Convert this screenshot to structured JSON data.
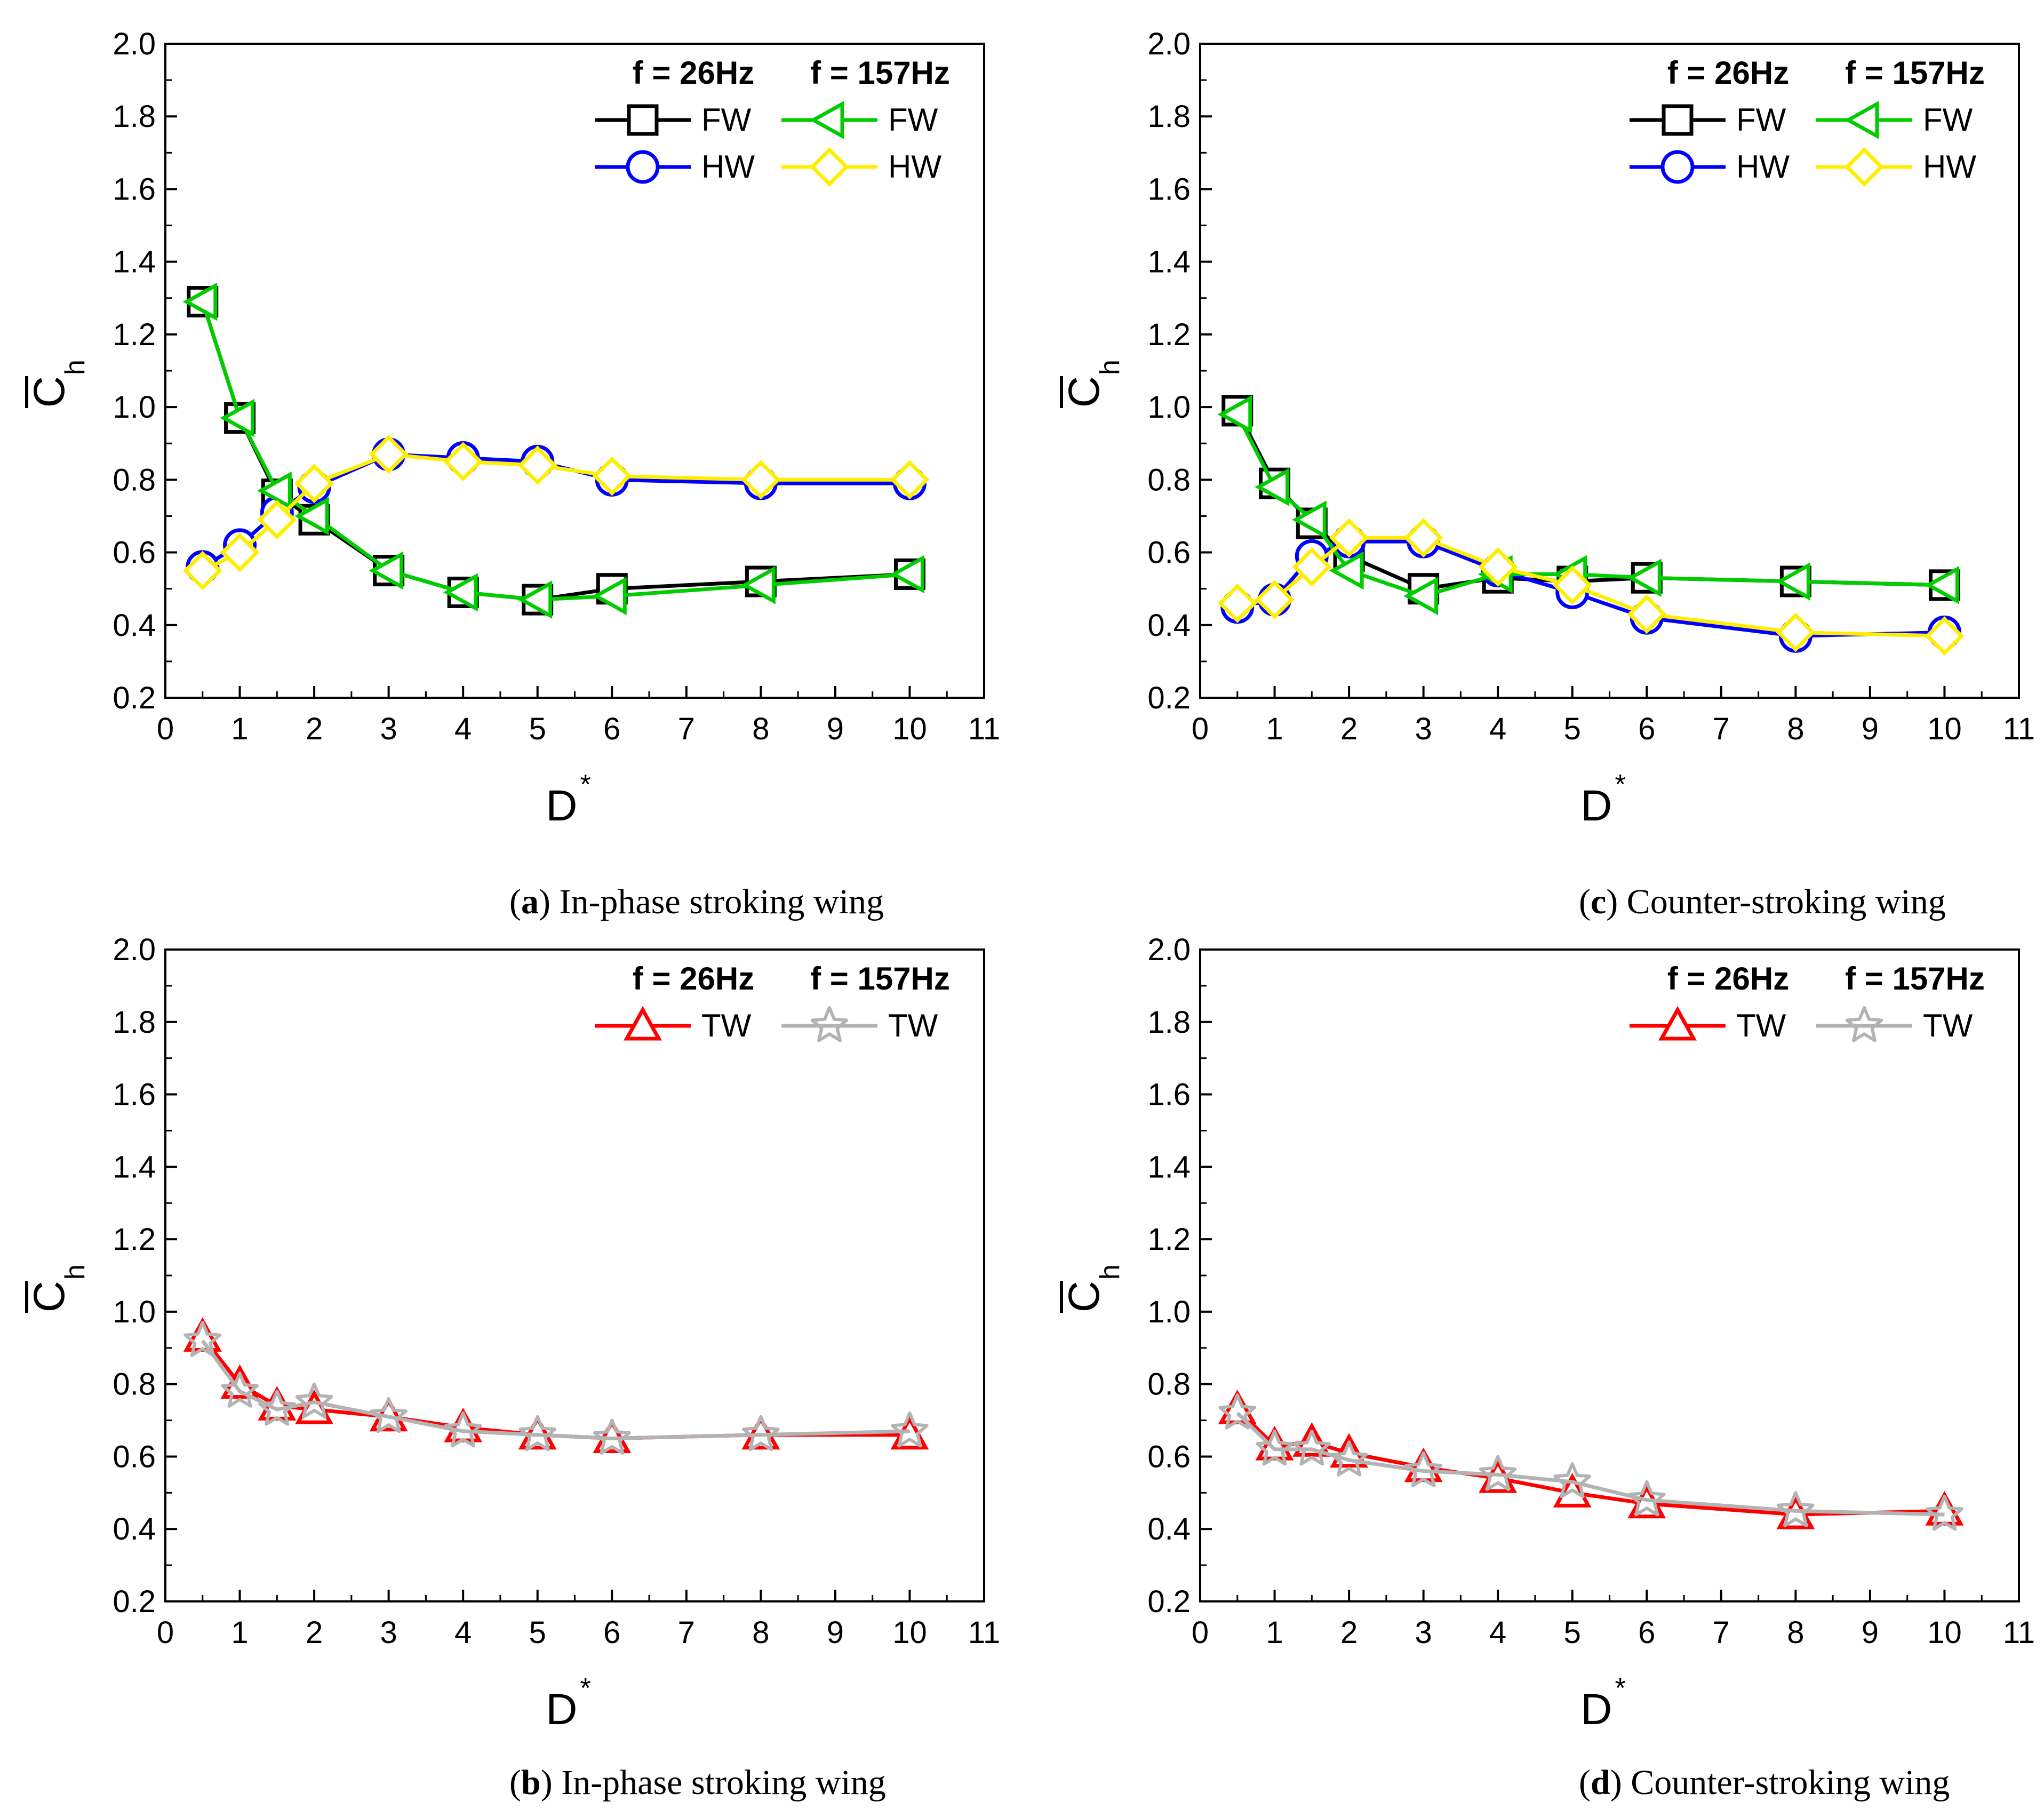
{
  "chart_data": [
    {
      "id": "a",
      "type": "line",
      "caption": {
        "open": "(",
        "letter": "a",
        "close": ")",
        "text": " In-phase stroking wing"
      },
      "xlabel": "D",
      "xlabel_sup": "*",
      "ylabel": "C",
      "ylabel_sub": "h",
      "xlim": [
        0,
        11
      ],
      "ylim": [
        0.2,
        2.0
      ],
      "xticks": [
        "0",
        "1",
        "2",
        "3",
        "4",
        "5",
        "6",
        "7",
        "8",
        "9",
        "10",
        "11"
      ],
      "yticks": [
        "0.2",
        "0.4",
        "0.6",
        "0.8",
        "1.0",
        "1.2",
        "1.4",
        "1.6",
        "1.8",
        "2.0"
      ],
      "legend_headers": [
        "f = 26Hz",
        "f = 157Hz"
      ],
      "legend_position": "top-right",
      "series": [
        {
          "name": "FW",
          "group": "f = 26Hz",
          "color": "#000000",
          "marker": "square",
          "x": [
            0.5,
            1,
            1.5,
            2,
            3,
            4,
            5,
            6,
            8,
            10
          ],
          "values": [
            1.29,
            0.97,
            0.76,
            0.69,
            0.55,
            0.49,
            0.47,
            0.5,
            0.52,
            0.54
          ]
        },
        {
          "name": "HW",
          "group": "f = 26Hz",
          "color": "#0000ff",
          "marker": "circle",
          "x": [
            0.5,
            1,
            1.5,
            2,
            3,
            4,
            5,
            6,
            8,
            10
          ],
          "values": [
            0.56,
            0.62,
            0.71,
            0.78,
            0.87,
            0.86,
            0.85,
            0.8,
            0.79,
            0.79
          ]
        },
        {
          "name": "FW",
          "group": "f = 157Hz",
          "color": "#00cc00",
          "marker": "triangle-left",
          "x": [
            0.5,
            1,
            1.5,
            2,
            3,
            4,
            5,
            6,
            8,
            10
          ],
          "values": [
            1.29,
            0.97,
            0.77,
            0.7,
            0.55,
            0.49,
            0.47,
            0.48,
            0.51,
            0.54
          ]
        },
        {
          "name": "HW",
          "group": "f = 157Hz",
          "color": "#ffee00",
          "marker": "diamond",
          "x": [
            0.5,
            1,
            1.5,
            2,
            3,
            4,
            5,
            6,
            8,
            10
          ],
          "values": [
            0.55,
            0.6,
            0.69,
            0.79,
            0.87,
            0.85,
            0.84,
            0.81,
            0.8,
            0.8
          ]
        }
      ]
    },
    {
      "id": "c",
      "type": "line",
      "caption": {
        "open": "(",
        "letter": "c",
        "close": ")",
        "text": " Counter-stroking wing"
      },
      "xlabel": "D",
      "xlabel_sup": "*",
      "ylabel": "C",
      "ylabel_sub": "h",
      "xlim": [
        0,
        11
      ],
      "ylim": [
        0.2,
        2.0
      ],
      "xticks": [
        "0",
        "1",
        "2",
        "3",
        "4",
        "5",
        "6",
        "7",
        "8",
        "9",
        "10",
        "11"
      ],
      "yticks": [
        "0.2",
        "0.4",
        "0.6",
        "0.8",
        "1.0",
        "1.2",
        "1.4",
        "1.6",
        "1.8",
        "2.0"
      ],
      "legend_headers": [
        "f = 26Hz",
        "f = 157Hz"
      ],
      "legend_position": "top-right",
      "series": [
        {
          "name": "FW",
          "group": "f = 26Hz",
          "color": "#000000",
          "marker": "square",
          "x": [
            0.5,
            1,
            1.5,
            2,
            3,
            4,
            5,
            6,
            8,
            10
          ],
          "values": [
            0.99,
            0.79,
            0.68,
            0.59,
            0.5,
            0.53,
            0.52,
            0.53,
            0.52,
            0.51
          ]
        },
        {
          "name": "HW",
          "group": "f = 26Hz",
          "color": "#0000ff",
          "marker": "circle",
          "x": [
            0.5,
            1,
            1.5,
            2,
            3,
            4,
            5,
            6,
            8,
            10
          ],
          "values": [
            0.45,
            0.47,
            0.59,
            0.63,
            0.63,
            0.55,
            0.49,
            0.42,
            0.37,
            0.38
          ]
        },
        {
          "name": "FW",
          "group": "f = 157Hz",
          "color": "#00cc00",
          "marker": "triangle-left",
          "x": [
            0.5,
            1,
            1.5,
            2,
            3,
            4,
            5,
            6,
            8,
            10
          ],
          "values": [
            0.98,
            0.78,
            0.69,
            0.55,
            0.48,
            0.54,
            0.54,
            0.53,
            0.52,
            0.51
          ]
        },
        {
          "name": "HW",
          "group": "f = 157Hz",
          "color": "#ffee00",
          "marker": "diamond",
          "x": [
            0.5,
            1,
            1.5,
            2,
            3,
            4,
            5,
            6,
            8,
            10
          ],
          "values": [
            0.46,
            0.47,
            0.56,
            0.64,
            0.64,
            0.56,
            0.51,
            0.43,
            0.38,
            0.37
          ]
        }
      ]
    },
    {
      "id": "b",
      "type": "line",
      "caption": {
        "open": "(",
        "letter": "b",
        "close": ")",
        "text": " In-phase stroking wing"
      },
      "xlabel": "D",
      "xlabel_sup": "*",
      "ylabel": "C",
      "ylabel_sub": "h",
      "xlim": [
        0,
        11
      ],
      "ylim": [
        0.2,
        2.0
      ],
      "xticks": [
        "0",
        "1",
        "2",
        "3",
        "4",
        "5",
        "6",
        "7",
        "8",
        "9",
        "10",
        "11"
      ],
      "yticks": [
        "0.2",
        "0.4",
        "0.6",
        "0.8",
        "1.0",
        "1.2",
        "1.4",
        "1.6",
        "1.8",
        "2.0"
      ],
      "legend_headers": [
        "f = 26Hz",
        "f = 157Hz"
      ],
      "legend_position": "top-right",
      "series": [
        {
          "name": "TW",
          "group": "f = 26Hz",
          "color": "#ff0000",
          "marker": "triangle-up",
          "x": [
            0.5,
            1,
            1.5,
            2,
            3,
            4,
            5,
            6,
            8,
            10
          ],
          "values": [
            0.93,
            0.8,
            0.74,
            0.73,
            0.71,
            0.68,
            0.66,
            0.65,
            0.66,
            0.66
          ]
        },
        {
          "name": "TW",
          "group": "f = 157Hz",
          "color": "#b3b3b3",
          "marker": "star",
          "x": [
            0.5,
            1,
            1.5,
            2,
            3,
            4,
            5,
            6,
            8,
            10
          ],
          "values": [
            0.92,
            0.78,
            0.73,
            0.75,
            0.71,
            0.67,
            0.66,
            0.65,
            0.66,
            0.67
          ]
        }
      ]
    },
    {
      "id": "d",
      "type": "line",
      "caption": {
        "open": "(",
        "letter": "d",
        "close": ")",
        "text": " Counter-stroking wing"
      },
      "xlabel": "D",
      "xlabel_sup": "*",
      "ylabel": "C",
      "ylabel_sub": "h",
      "xlim": [
        0,
        11
      ],
      "ylim": [
        0.2,
        2.0
      ],
      "xticks": [
        "0",
        "1",
        "2",
        "3",
        "4",
        "5",
        "6",
        "7",
        "8",
        "9",
        "10",
        "11"
      ],
      "yticks": [
        "0.2",
        "0.4",
        "0.6",
        "0.8",
        "1.0",
        "1.2",
        "1.4",
        "1.6",
        "1.8",
        "2.0"
      ],
      "legend_headers": [
        "f = 26Hz",
        "f = 157Hz"
      ],
      "legend_position": "top-right",
      "series": [
        {
          "name": "TW",
          "group": "f = 26Hz",
          "color": "#ff0000",
          "marker": "triangle-up",
          "x": [
            0.5,
            1,
            1.5,
            2,
            3,
            4,
            5,
            6,
            8,
            10
          ],
          "values": [
            0.73,
            0.63,
            0.64,
            0.61,
            0.57,
            0.54,
            0.5,
            0.47,
            0.44,
            0.45
          ]
        },
        {
          "name": "TW",
          "group": "f = 157Hz",
          "color": "#b3b3b3",
          "marker": "star",
          "x": [
            0.5,
            1,
            1.5,
            2,
            3,
            4,
            5,
            6,
            8,
            10
          ],
          "values": [
            0.72,
            0.62,
            0.62,
            0.59,
            0.56,
            0.55,
            0.53,
            0.48,
            0.45,
            0.44
          ]
        }
      ]
    }
  ]
}
